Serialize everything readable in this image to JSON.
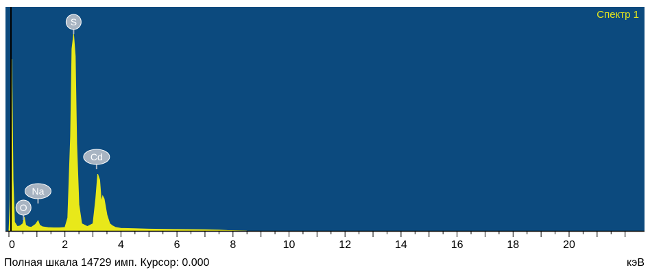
{
  "spectrum_label": "Спектр 1",
  "status_bar": {
    "full_scale_label": "Полная шкала",
    "full_scale_value": "14729",
    "counts_unit": "имп.",
    "cursor_label": "Курсор:",
    "cursor_value": "0.000",
    "energy_unit": "кэВ"
  },
  "colors": {
    "plot_background": "#0c4a7e",
    "spectrum_fill": "#e8e81a",
    "peak_label_fill": "#a8b4c2",
    "spectrum_label_text": "#e8e81a"
  },
  "chart_data": {
    "type": "area",
    "xlabel": "кэВ",
    "x_ticks": [
      "0",
      "2",
      "4",
      "6",
      "8",
      "10",
      "12",
      "14",
      "16",
      "18",
      "20"
    ],
    "xlim": [
      0,
      22.3
    ],
    "ylim": [
      0,
      14729
    ],
    "x": [
      0.0,
      0.05,
      0.1,
      0.15,
      0.2,
      0.3,
      0.4,
      0.5,
      0.55,
      0.6,
      0.7,
      0.8,
      0.95,
      1.04,
      1.1,
      1.2,
      1.4,
      1.6,
      1.8,
      2.0,
      2.1,
      2.2,
      2.25,
      2.31,
      2.37,
      2.42,
      2.5,
      2.6,
      2.8,
      3.0,
      3.1,
      3.17,
      3.24,
      3.3,
      3.35,
      3.4,
      3.5,
      3.6,
      3.7,
      3.8,
      4.0,
      4.5,
      5.0,
      6.0,
      7.0,
      7.5,
      7.8,
      8.2,
      8.5
    ],
    "y": [
      0,
      2200,
      11800,
      3500,
      600,
      300,
      350,
      500,
      950,
      400,
      280,
      250,
      450,
      700,
      400,
      280,
      230,
      210,
      210,
      240,
      900,
      6500,
      12500,
      13500,
      12000,
      6000,
      1800,
      500,
      300,
      500,
      2200,
      3900,
      3500,
      2000,
      2400,
      2200,
      1100,
      500,
      350,
      250,
      180,
      150,
      120,
      100,
      80,
      60,
      30,
      12,
      0
    ],
    "peaks": [
      {
        "element": "S",
        "energy": 2.31
      },
      {
        "element": "Cd",
        "energy": 3.13
      },
      {
        "element": "Na",
        "energy": 1.04
      },
      {
        "element": "O",
        "energy": 0.52
      }
    ]
  }
}
